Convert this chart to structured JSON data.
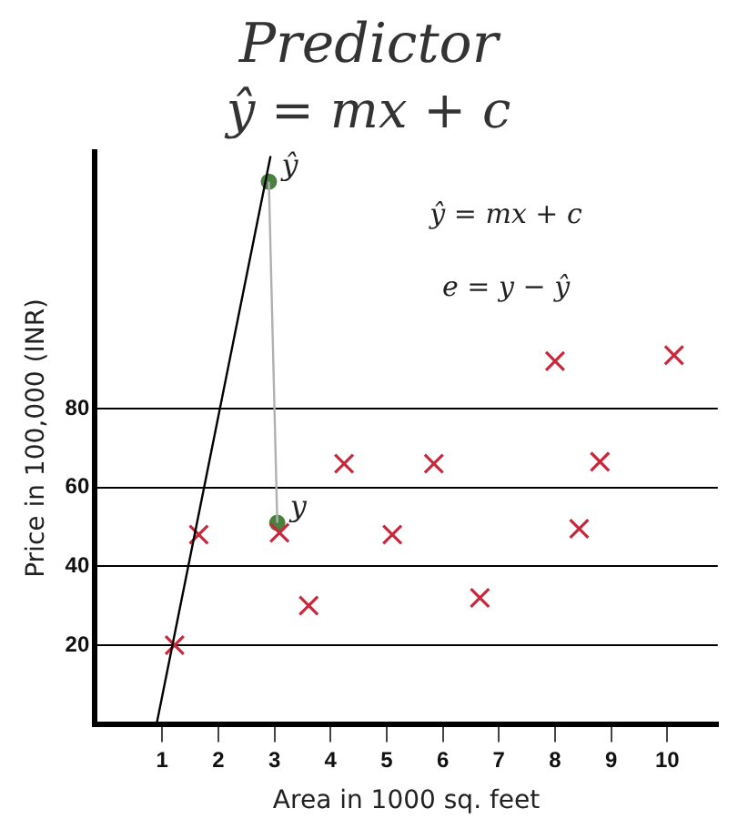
{
  "chart_data": {
    "type": "scatter",
    "title": "Predictor",
    "subtitle": "ŷ = mx + c",
    "xlabel": "Area in 1000 sq. feet",
    "ylabel": "Price in 100,000 (INR)",
    "xlim": [
      -0.2,
      10.9
    ],
    "xticks": [
      1,
      2,
      3,
      4,
      5,
      6,
      7,
      8,
      9,
      10
    ],
    "ylim": [
      0,
      145
    ],
    "yticks": [
      20,
      40,
      60,
      80
    ],
    "grid": "y",
    "legend": false,
    "series": [
      {
        "type": "line",
        "color": "#000000",
        "marker": "none",
        "x": [
          0.9,
          2.93
        ],
        "values": [
          0,
          144
        ]
      },
      {
        "type": "line",
        "color": "#b0b0b0",
        "marker": "none",
        "x": [
          2.9,
          3.05
        ],
        "values": [
          137.5,
          51
        ]
      },
      {
        "color": "#c8283c",
        "marker": "cross",
        "x": [
          1.22,
          1.65,
          3.09,
          3.61,
          4.24,
          5.1,
          5.84,
          6.66,
          8.0,
          8.43,
          8.8,
          10.12
        ],
        "values": [
          20,
          48,
          48.5,
          30,
          66,
          48,
          66,
          32,
          92,
          49.5,
          66.5,
          93.5
        ]
      },
      {
        "color": "#4a8040",
        "marker": "circle",
        "x": [
          2.9,
          3.05
        ],
        "values": [
          137.5,
          51
        ]
      }
    ],
    "annotations": [
      {
        "text": "ŷ",
        "x": 2.9,
        "y": 137.5
      },
      {
        "text": "y",
        "x": 3.05,
        "y": 51
      },
      "ŷ = mx + c",
      "e = y − ŷ"
    ]
  }
}
